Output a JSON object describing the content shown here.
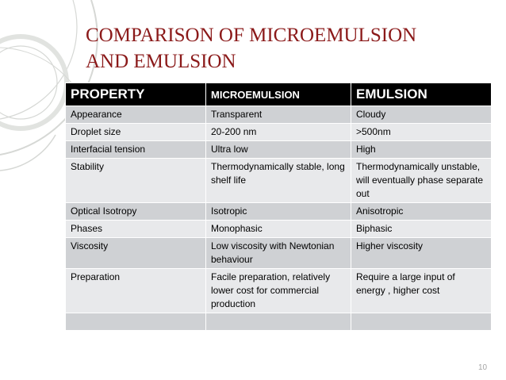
{
  "slide": {
    "title_lines": [
      "COMPARISON OF MICROEMULSION",
      "AND EMULSION"
    ],
    "page_number": "10"
  },
  "table": {
    "headers": [
      "PROPERTY",
      "MICROEMULSION",
      "EMULSION"
    ],
    "rows": [
      [
        "Appearance",
        "Transparent",
        "Cloudy"
      ],
      [
        "Droplet size",
        "20-200 nm",
        ">500nm"
      ],
      [
        "Interfacial tension",
        "Ultra low",
        "High"
      ],
      [
        "Stability",
        "Thermodynamically stable, long shelf  life",
        "Thermodynamically unstable, will eventually phase separate out"
      ],
      [
        "Optical Isotropy",
        "Isotropic",
        "Anisotropic"
      ],
      [
        "Phases",
        "Monophasic",
        "Biphasic"
      ],
      [
        "Viscosity",
        "Low viscosity with Newtonian behaviour",
        "Higher viscosity"
      ],
      [
        "Preparation",
        "Facile preparation, relatively lower cost for commercial production",
        "Require a large input of energy , higher cost"
      ],
      [
        "",
        "",
        ""
      ]
    ]
  },
  "colors": {
    "title": "#8b1a1a",
    "header_bg": "#000000",
    "header_text": "#ffffff",
    "row_dark": "#cfd1d4",
    "row_light": "#e8e9eb",
    "page_number": "#a5a5a5"
  }
}
